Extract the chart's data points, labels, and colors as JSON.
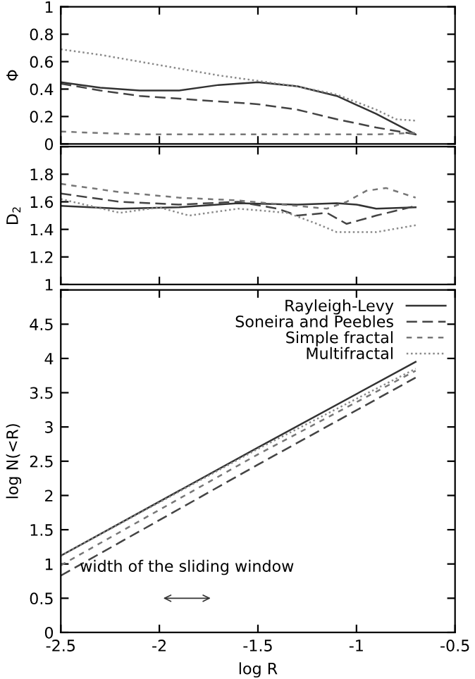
{
  "chart_data": [
    {
      "type": "line",
      "ylabel": "Φ",
      "xlim": [
        -2.5,
        -0.5
      ],
      "xticks": [
        {
          "value": -2.5,
          "label": null
        },
        {
          "value": -2,
          "label": null
        },
        {
          "value": -1.5,
          "label": null
        },
        {
          "value": -1,
          "label": null
        },
        {
          "value": -0.5,
          "label": null
        }
      ],
      "ylim": [
        0,
        1
      ],
      "yticks": [
        0,
        0.2,
        0.4,
        0.6,
        0.8,
        1
      ],
      "tick_labels": "y",
      "grid": false,
      "legend": false,
      "series": [
        {
          "color": "#333333",
          "line_style": "solid",
          "x": [
            -2.5,
            -2.3,
            -2.1,
            -1.9,
            -1.7,
            -1.5,
            -1.3,
            -1.1,
            -0.9,
            -0.7
          ],
          "values": [
            0.45,
            0.41,
            0.39,
            0.39,
            0.43,
            0.45,
            0.42,
            0.35,
            0.22,
            0.07
          ]
        },
        {
          "color": "#444444",
          "line_style": "dashed",
          "x": [
            -2.5,
            -2.3,
            -2.1,
            -1.9,
            -1.7,
            -1.5,
            -1.3,
            -1.1,
            -0.9,
            -0.7
          ],
          "values": [
            0.44,
            0.39,
            0.35,
            0.33,
            0.31,
            0.29,
            0.25,
            0.18,
            0.12,
            0.07
          ]
        },
        {
          "color": "#777777",
          "line_style": "shortdash",
          "x": [
            -2.5,
            -2.3,
            -2.1,
            -1.9,
            -1.7,
            -1.5,
            -1.3,
            -1.1,
            -0.9,
            -0.7
          ],
          "values": [
            0.09,
            0.08,
            0.07,
            0.07,
            0.07,
            0.07,
            0.07,
            0.07,
            0.07,
            0.08
          ]
        },
        {
          "color": "#8a8a8a",
          "line_style": "dotted",
          "x": [
            -2.5,
            -2.3,
            -2.1,
            -1.9,
            -1.7,
            -1.5,
            -1.3,
            -1.1,
            -0.9,
            -0.8,
            -0.7
          ],
          "values": [
            0.69,
            0.65,
            0.6,
            0.55,
            0.5,
            0.46,
            0.42,
            0.36,
            0.25,
            0.18,
            0.17
          ]
        }
      ]
    },
    {
      "type": "line",
      "ylabel": "D$_{2}$",
      "xlim": [
        -2.5,
        -0.5
      ],
      "xticks": [
        {
          "value": -2.5,
          "label": null
        },
        {
          "value": -2,
          "label": null
        },
        {
          "value": -1.5,
          "label": null
        },
        {
          "value": -1,
          "label": null
        },
        {
          "value": -0.5,
          "label": null
        }
      ],
      "ylim": [
        1,
        2
      ],
      "yticks": [
        1,
        1.2,
        1.4,
        1.6,
        1.8,
        {
          "value": 2,
          "label": null
        }
      ],
      "tick_labels": "y",
      "grid": false,
      "legend": false,
      "series": [
        {
          "color": "#333333",
          "line_style": "solid",
          "x": [
            -2.5,
            -2.2,
            -1.9,
            -1.6,
            -1.3,
            -1.1,
            -1.0,
            -0.9,
            -0.7
          ],
          "values": [
            1.57,
            1.55,
            1.56,
            1.59,
            1.58,
            1.59,
            1.58,
            1.55,
            1.56
          ]
        },
        {
          "color": "#444444",
          "line_style": "dashed",
          "x": [
            -2.5,
            -2.2,
            -1.9,
            -1.6,
            -1.4,
            -1.3,
            -1.15,
            -1.05,
            -0.9,
            -0.7
          ],
          "values": [
            1.66,
            1.6,
            1.58,
            1.6,
            1.55,
            1.5,
            1.52,
            1.44,
            1.5,
            1.57
          ]
        },
        {
          "color": "#777777",
          "line_style": "shortdash",
          "x": [
            -2.5,
            -2.2,
            -1.9,
            -1.6,
            -1.3,
            -1.15,
            -1.05,
            -0.95,
            -0.85,
            -0.7
          ],
          "values": [
            1.73,
            1.67,
            1.63,
            1.61,
            1.57,
            1.55,
            1.6,
            1.68,
            1.7,
            1.63
          ]
        },
        {
          "color": "#8a8a8a",
          "line_style": "dotted",
          "x": [
            -2.5,
            -2.2,
            -2.0,
            -1.85,
            -1.6,
            -1.35,
            -1.2,
            -1.1,
            -0.9,
            -0.7
          ],
          "values": [
            1.62,
            1.52,
            1.56,
            1.5,
            1.55,
            1.52,
            1.44,
            1.38,
            1.38,
            1.43
          ]
        }
      ]
    },
    {
      "type": "line",
      "xlabel": "log R",
      "ylabel": "log N(<R)",
      "xlim": [
        -2.5,
        -0.5
      ],
      "xticks": [
        -2.5,
        -2,
        -1.5,
        -1,
        -0.5
      ],
      "ylim": [
        0,
        5
      ],
      "yticks": [
        0,
        0.5,
        1,
        1.5,
        2,
        2.5,
        3,
        3.5,
        4,
        4.5,
        {
          "value": 5,
          "label": null
        }
      ],
      "grid": false,
      "legend": "top right",
      "annotations": [
        "width of the sliding window"
      ],
      "series": [
        {
          "name": "Rayleigh-Levy",
          "color": "#333333",
          "line_style": "solid",
          "x": [
            -2.5,
            -1.5,
            -0.7
          ],
          "values": [
            1.12,
            2.7,
            3.95
          ]
        },
        {
          "name": "Soneira and Peebles",
          "color": "#444444",
          "line_style": "dashed",
          "x": [
            -2.5,
            -1.5,
            -0.7
          ],
          "values": [
            0.83,
            2.45,
            3.72
          ]
        },
        {
          "name": "Simple fractal",
          "color": "#777777",
          "line_style": "shortdash",
          "x": [
            -2.5,
            -1.5,
            -0.7
          ],
          "values": [
            0.98,
            2.6,
            3.82
          ]
        },
        {
          "name": "Multifractal",
          "color": "#8a8a8a",
          "line_style": "dotted",
          "x": [
            -2.5,
            -1.5,
            -0.7
          ],
          "values": [
            1.12,
            2.68,
            3.85
          ]
        }
      ]
    }
  ]
}
